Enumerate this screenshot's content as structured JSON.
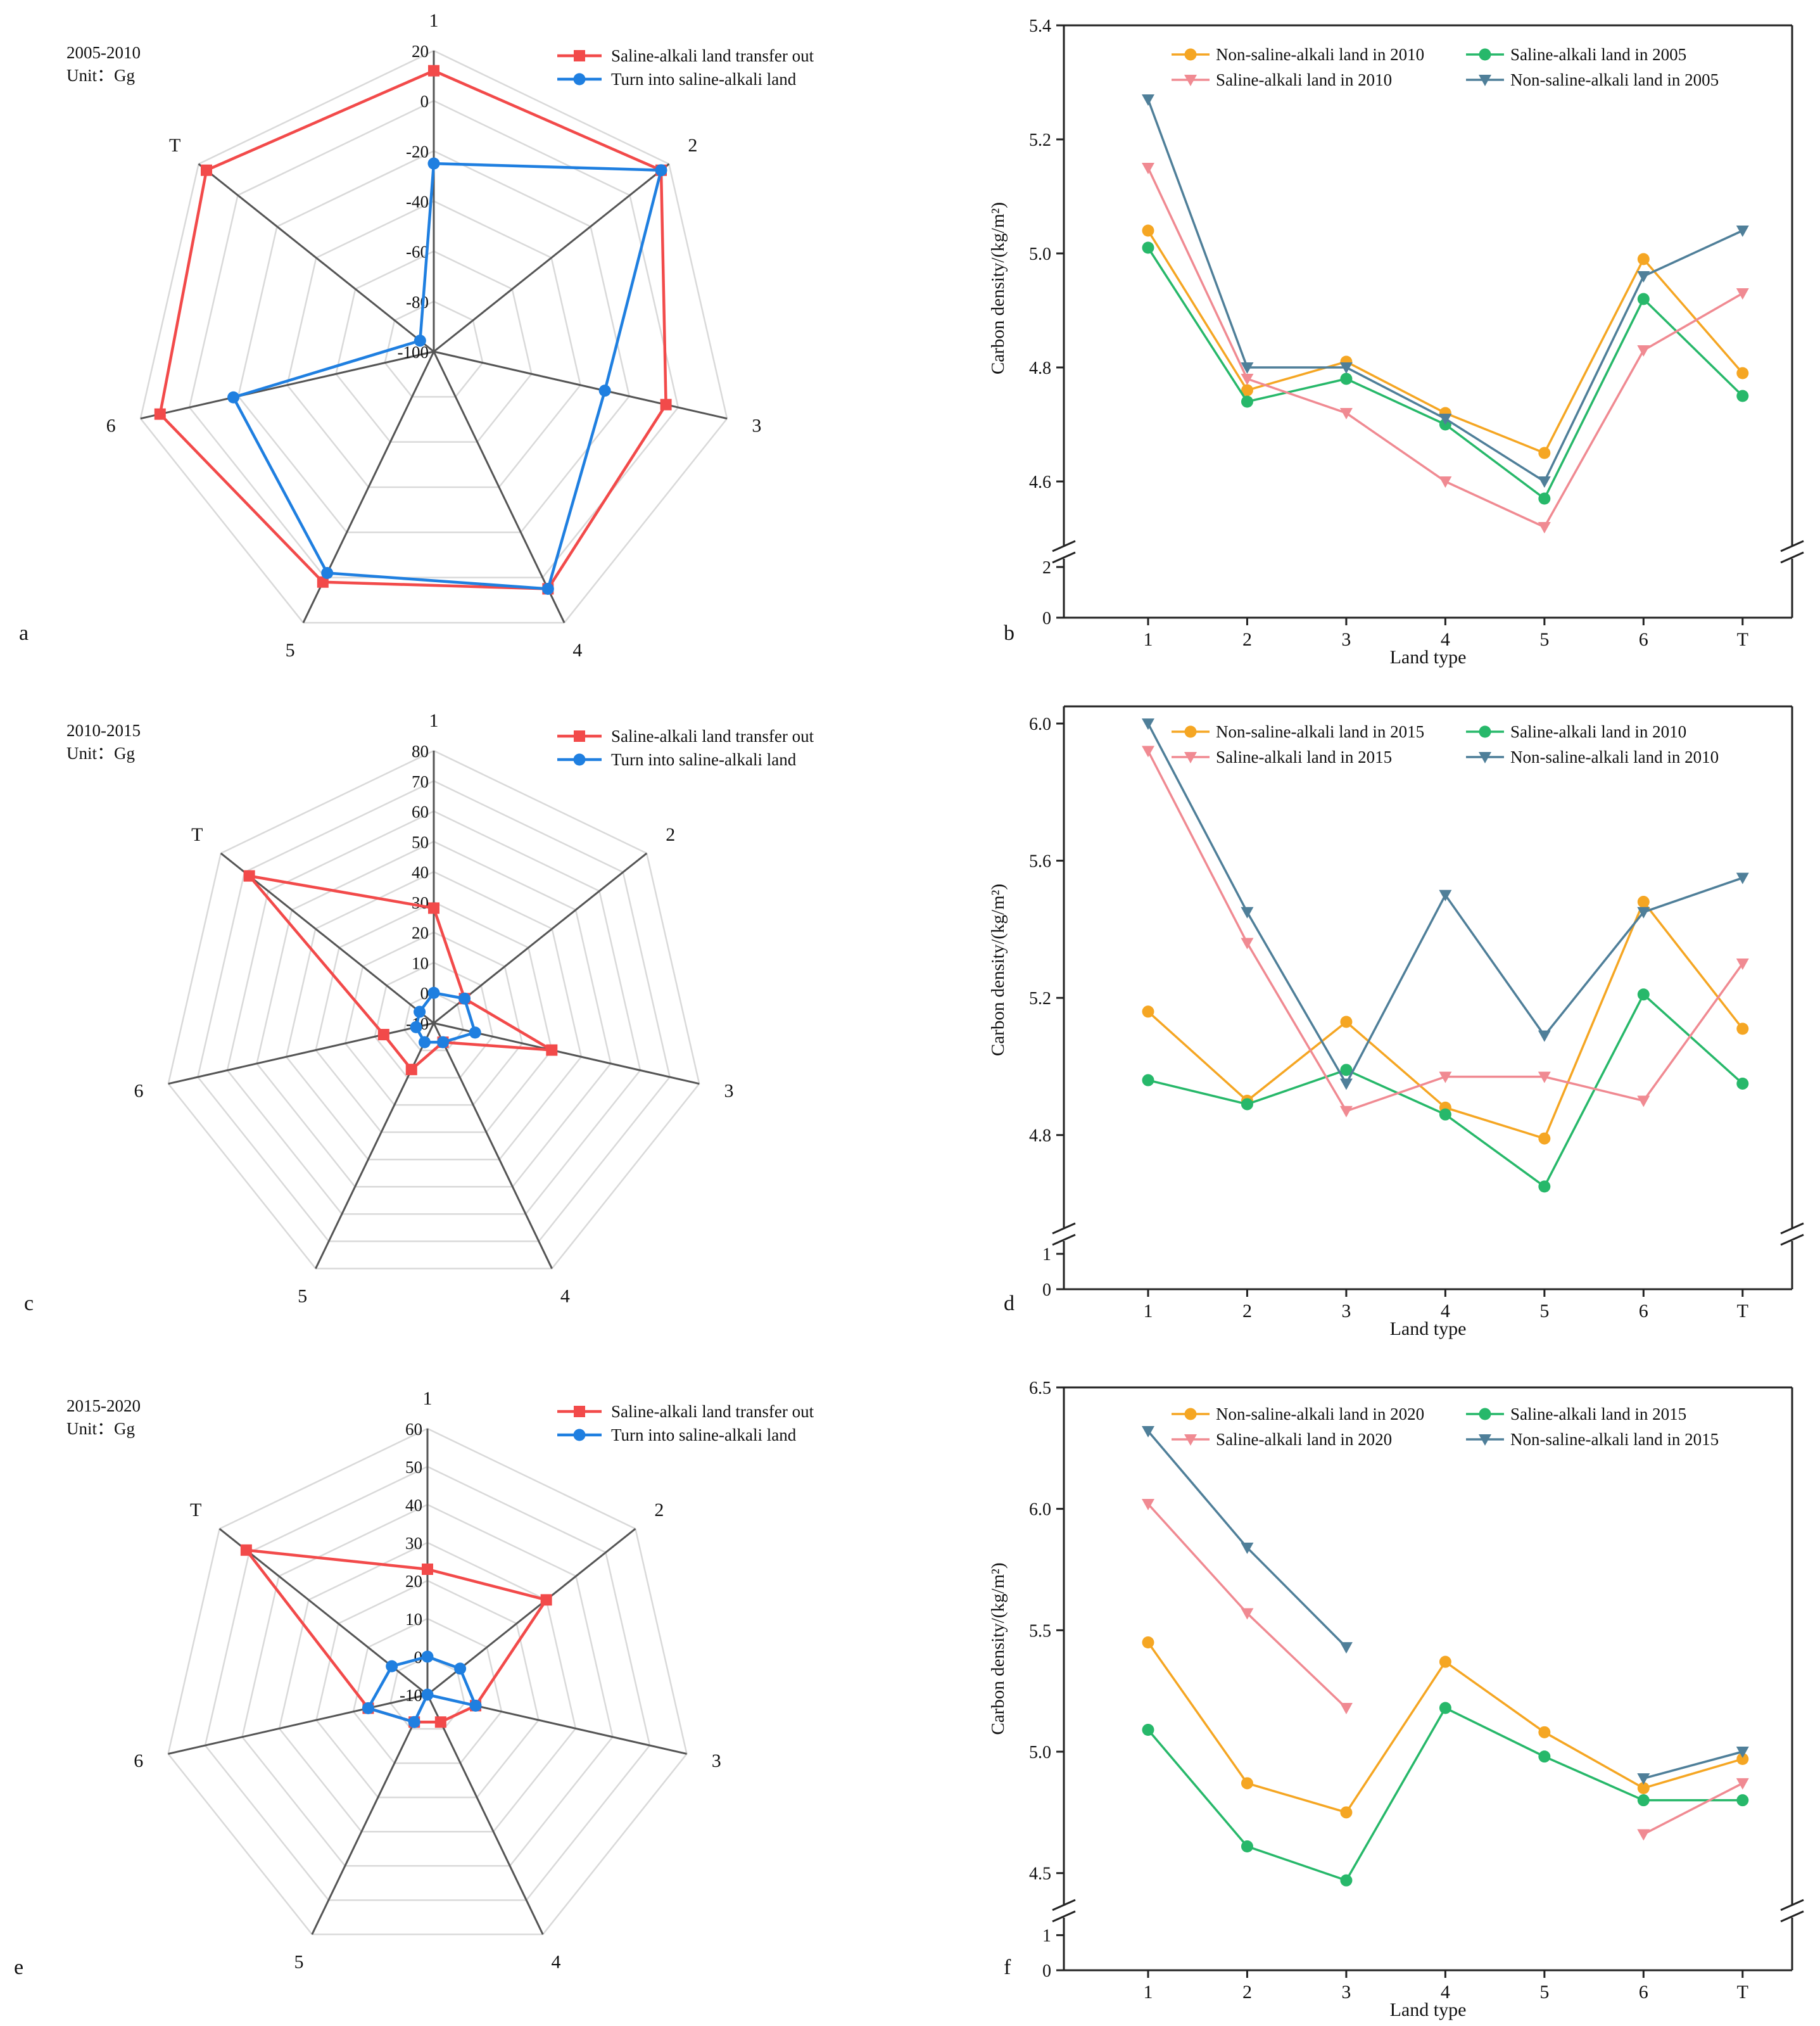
{
  "colors": {
    "out_red": "#f24a4a",
    "into_blue": "#1f7fe0",
    "orange": "#f5a623",
    "green": "#27b86a",
    "pink": "#f08a92",
    "steel": "#4f7f99",
    "grid": "#d9d9d9",
    "spoke": "#555555",
    "axis": "#222222"
  },
  "chart_data": [
    {
      "id": "a",
      "panel": "a",
      "type": "radar",
      "title": "2005-2010",
      "unit": "Unit：Gg",
      "axes": [
        "1",
        "2",
        "3",
        "4",
        "5",
        "6",
        "T"
      ],
      "rlim": [
        -100,
        20
      ],
      "rticks": [
        "20",
        "0",
        "-20",
        "-40",
        "-60",
        "-80",
        "-100"
      ],
      "series": [
        {
          "name": "Saline-alkali land transfer out",
          "color": "out_red",
          "marker": "square",
          "values": [
            12,
            16,
            -5,
            5,
            2,
            12,
            16
          ]
        },
        {
          "name": "Turn into saline-alkali land",
          "color": "into_blue",
          "marker": "circle",
          "values": [
            -25,
            16,
            -30,
            5,
            -2,
            -18,
            -93
          ]
        }
      ]
    },
    {
      "id": "b",
      "panel": "b",
      "type": "line",
      "ylabel": "Carbon density/(kg/m²)",
      "xlabel": "Land type",
      "categories": [
        "1",
        "2",
        "3",
        "4",
        "5",
        "6",
        "T"
      ],
      "ylim_upper": [
        4.5,
        5.4
      ],
      "yticks_upper": [
        "4.6",
        "4.8",
        "5.0",
        "5.2",
        "5.4"
      ],
      "ylim_lower": [
        0,
        2
      ],
      "yticks_lower": [
        "0",
        "2"
      ],
      "series": [
        {
          "name": "Non-saline-alkali land in 2010",
          "color": "orange",
          "marker": "circle",
          "values": [
            5.04,
            4.76,
            4.81,
            4.72,
            4.65,
            4.99,
            4.79
          ]
        },
        {
          "name": "Saline-alkali land in 2005",
          "color": "green",
          "marker": "circle",
          "values": [
            5.01,
            4.74,
            4.78,
            4.7,
            4.57,
            4.92,
            4.75
          ]
        },
        {
          "name": "Saline-alkali land in 2010",
          "color": "pink",
          "marker": "tri",
          "values": [
            5.15,
            4.78,
            4.72,
            4.6,
            4.52,
            4.83,
            4.93
          ]
        },
        {
          "name": "Non-saline-alkali land in 2005",
          "color": "steel",
          "marker": "tri",
          "values": [
            5.27,
            4.8,
            4.8,
            4.71,
            4.6,
            4.96,
            5.04
          ]
        }
      ]
    },
    {
      "id": "c",
      "panel": "c",
      "type": "radar",
      "title": "2010-2015",
      "unit": "Unit：Gg",
      "axes": [
        "1",
        "2",
        "3",
        "4",
        "5",
        "6",
        "T"
      ],
      "rlim": [
        -10,
        80
      ],
      "rticks": [
        "80",
        "70",
        "60",
        "50",
        "40",
        "30",
        "20",
        "10",
        "0",
        "-10"
      ],
      "series": [
        {
          "name": "Saline-alkali land transfer out",
          "color": "out_red",
          "marker": "square",
          "values": [
            28,
            3,
            30,
            -3,
            7,
            7,
            68
          ]
        },
        {
          "name": "Turn into saline-alkali land",
          "color": "into_blue",
          "marker": "circle",
          "values": [
            0,
            3,
            4,
            -3,
            -3,
            -4,
            -4
          ]
        }
      ]
    },
    {
      "id": "d",
      "panel": "d",
      "type": "line",
      "ylabel": "Carbon density/(kg/m²)",
      "xlabel": "Land type",
      "categories": [
        "1",
        "2",
        "3",
        "4",
        "5",
        "6",
        "T"
      ],
      "ylim_upper": [
        4.55,
        6.05
      ],
      "yticks_upper": [
        "4.8",
        "5.2",
        "5.6",
        "6.0"
      ],
      "ylim_lower": [
        0,
        1.2
      ],
      "yticks_lower": [
        "0",
        "1"
      ],
      "series": [
        {
          "name": "Non-saline-alkali land in 2015",
          "color": "orange",
          "marker": "circle",
          "values": [
            5.16,
            4.9,
            5.13,
            4.88,
            4.79,
            5.48,
            5.11
          ]
        },
        {
          "name": "Saline-alkali land in 2010",
          "color": "green",
          "marker": "circle",
          "values": [
            4.96,
            4.89,
            4.99,
            4.86,
            4.65,
            5.21,
            4.95
          ]
        },
        {
          "name": "Saline-alkali land in 2015",
          "color": "pink",
          "marker": "tri",
          "values": [
            5.92,
            5.36,
            4.87,
            4.97,
            4.97,
            4.9,
            5.3
          ]
        },
        {
          "name": "Non-saline-alkali land in 2010",
          "color": "steel",
          "marker": "tri",
          "values": [
            6.0,
            5.45,
            4.95,
            5.5,
            5.09,
            5.45,
            5.55
          ]
        }
      ]
    },
    {
      "id": "e",
      "panel": "e",
      "type": "radar",
      "title": "2015-2020",
      "unit": "Unit：Gg",
      "axes": [
        "1",
        "2",
        "3",
        "4",
        "5",
        "6",
        "T"
      ],
      "rlim": [
        -10,
        60
      ],
      "rticks": [
        "60",
        "50",
        "40",
        "30",
        "20",
        "10",
        "0",
        "-10"
      ],
      "series": [
        {
          "name": "Saline-alkali land transfer out",
          "color": "out_red",
          "marker": "square",
          "values": [
            23,
            30,
            3,
            -2,
            -2,
            6,
            51
          ]
        },
        {
          "name": "Turn into saline-alkali land",
          "color": "into_blue",
          "marker": "circle",
          "values": [
            0,
            1,
            3,
            -10,
            -2,
            6,
            2
          ]
        }
      ]
    },
    {
      "id": "f",
      "panel": "f",
      "type": "line",
      "ylabel": "Carbon density/(kg/m²)",
      "xlabel": "Land type",
      "categories": [
        "1",
        "2",
        "3",
        "4",
        "5",
        "6",
        "T"
      ],
      "ylim_upper": [
        4.4,
        6.5
      ],
      "yticks_upper": [
        "4.5",
        "5.0",
        "5.5",
        "6.0",
        "6.5"
      ],
      "ylim_lower": [
        0,
        1.3
      ],
      "yticks_lower": [
        "0",
        "1"
      ],
      "series": [
        {
          "name": "Non-saline-alkali land in 2020",
          "color": "orange",
          "marker": "circle",
          "values": [
            5.45,
            4.87,
            4.75,
            5.37,
            5.08,
            4.85,
            4.97
          ]
        },
        {
          "name": "Saline-alkali land in 2015",
          "color": "green",
          "marker": "circle",
          "values": [
            5.09,
            4.61,
            4.47,
            5.18,
            4.98,
            4.8,
            4.8
          ]
        },
        {
          "name": "Saline-alkali land in 2020",
          "color": "pink",
          "marker": "tri",
          "values": [
            6.02,
            5.57,
            5.18,
            null,
            null,
            4.66,
            4.87
          ]
        },
        {
          "name": "Non-saline-alkali land in 2015",
          "color": "steel",
          "marker": "tri",
          "values": [
            6.32,
            5.84,
            5.43,
            null,
            null,
            4.89,
            5.0
          ]
        }
      ]
    }
  ]
}
